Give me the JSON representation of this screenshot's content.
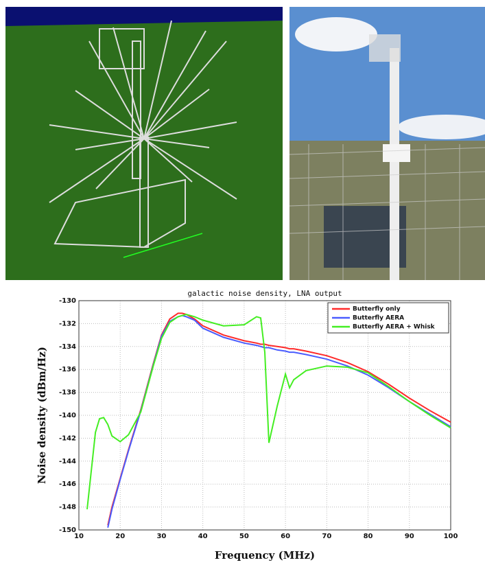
{
  "chart_data": {
    "type": "line",
    "title": "galactic noise density, LNA output",
    "x_label": "Frequency (MHz)",
    "y_label": "Noise density (dBm/Hz)",
    "x": [
      12,
      14,
      15,
      16,
      17,
      18,
      20,
      22,
      25,
      28,
      30,
      32,
      34,
      35,
      36,
      38,
      40,
      45,
      50,
      53,
      54,
      55,
      56,
      58,
      60,
      61,
      62,
      65,
      70,
      75,
      80,
      85,
      90,
      95,
      100
    ],
    "series": [
      {
        "name": "Butterfly only",
        "color": "#ff2a2a",
        "values": [
          null,
          null,
          null,
          null,
          -149.6,
          -148,
          -145.5,
          -143,
          -139.5,
          -135.5,
          -133,
          -131.6,
          -131.1,
          -131.1,
          -131.2,
          -131.6,
          -132.2,
          -133,
          -133.5,
          -133.7,
          -133.8,
          -133.8,
          -133.9,
          -134,
          -134.1,
          -134.2,
          -134.2,
          -134.4,
          -134.8,
          -135.4,
          -136.2,
          -137.3,
          -138.5,
          -139.6,
          -140.6
        ]
      },
      {
        "name": "Butterfly AERA",
        "color": "#4a5cff",
        "values": [
          null,
          null,
          null,
          null,
          -149.8,
          -148.2,
          -145.6,
          -143.1,
          -139.6,
          -135.6,
          -133.1,
          -131.8,
          -131.4,
          -131.3,
          -131.4,
          -131.7,
          -132.4,
          -133.2,
          -133.7,
          -133.9,
          -134,
          -134.1,
          -134.1,
          -134.3,
          -134.4,
          -134.5,
          -134.5,
          -134.7,
          -135.1,
          -135.7,
          -136.5,
          -137.6,
          -138.8,
          -139.9,
          -141
        ]
      },
      {
        "name": "Butterfly AERA + Whisk",
        "color": "#44ee22",
        "values": [
          -148.2,
          -141.5,
          -140.3,
          -140.2,
          -140.8,
          -141.8,
          -142.3,
          -141.7,
          -139.7,
          -135.7,
          -133.3,
          -131.9,
          -131.4,
          -131.3,
          -131.2,
          -131.4,
          -131.7,
          -132.2,
          -132.1,
          -131.4,
          -131.5,
          -134.5,
          -142.4,
          -139.2,
          -136.4,
          -137.6,
          -136.9,
          -136.1,
          -135.7,
          -135.8,
          -136.3,
          -137.5,
          -138.8,
          -140,
          -141.1
        ]
      }
    ],
    "xlim": [
      10,
      100
    ],
    "xticks": [
      10,
      20,
      30,
      40,
      50,
      60,
      70,
      80,
      90,
      100
    ],
    "ylim": [
      -150,
      -130
    ],
    "yticks": [
      -150,
      -148,
      -146,
      -144,
      -142,
      -140,
      -138,
      -136,
      -134,
      -132,
      -130
    ],
    "grid": true,
    "legend": "top-right"
  }
}
